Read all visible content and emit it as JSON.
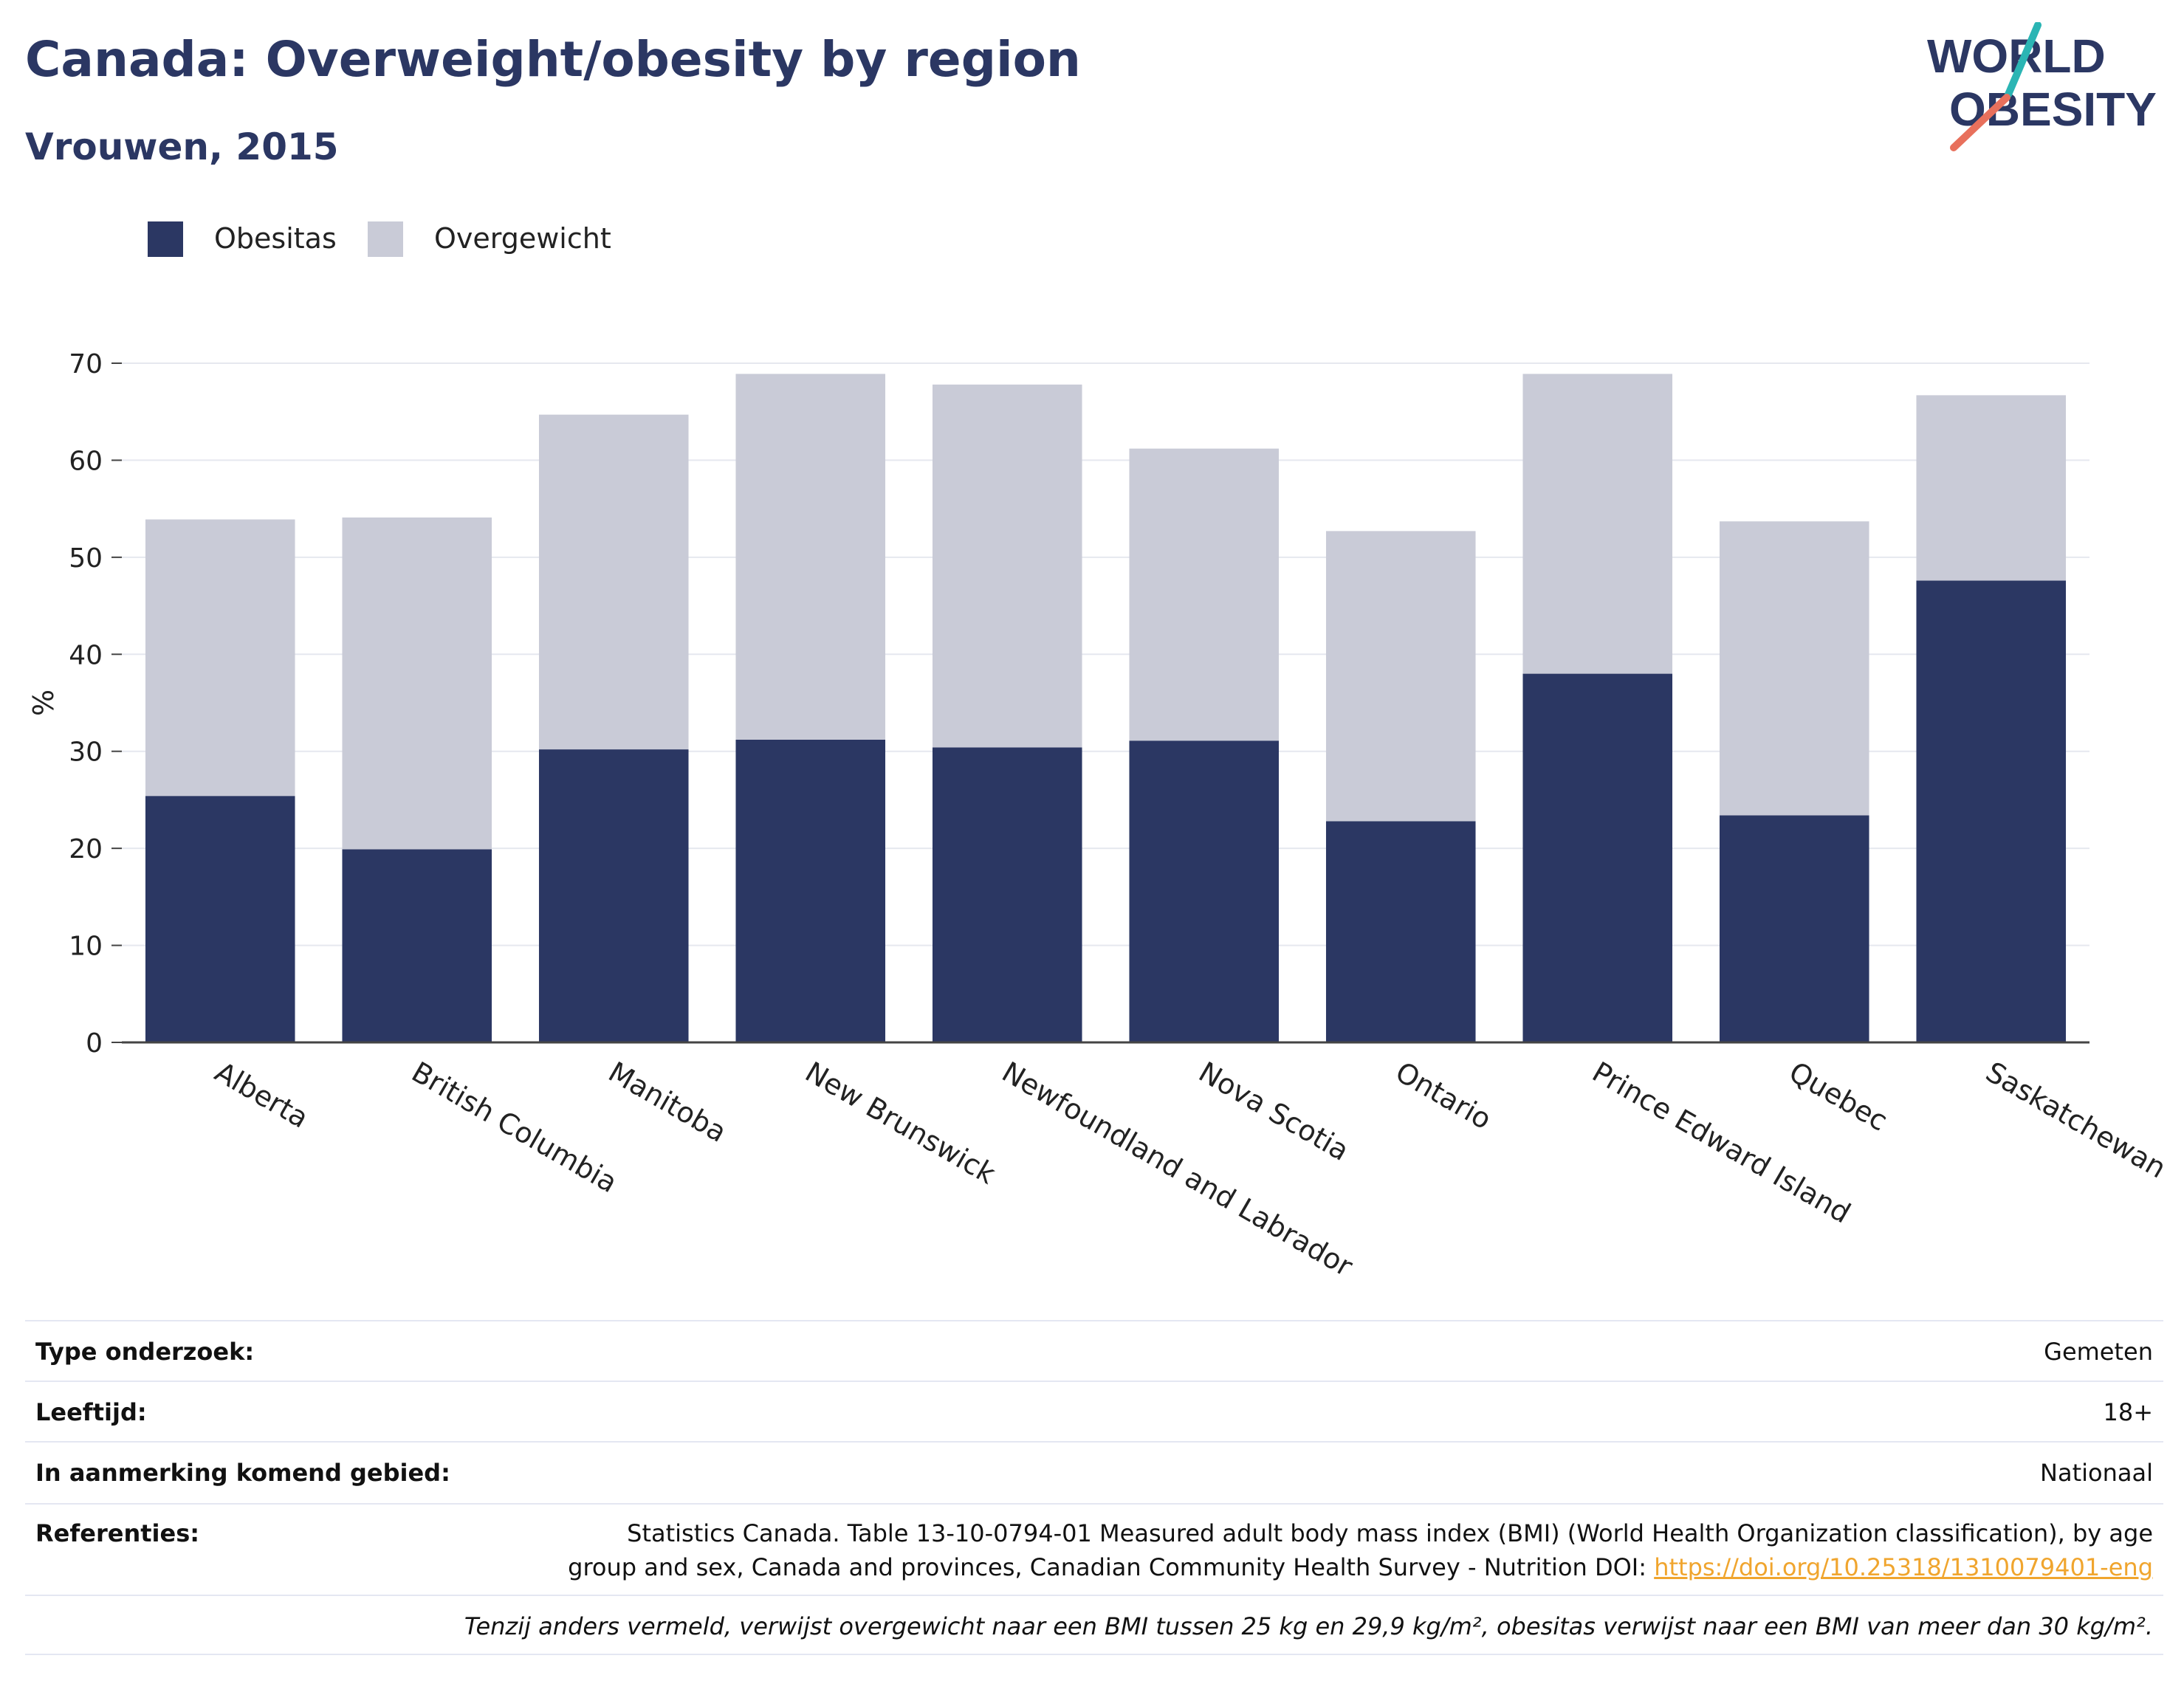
{
  "header": {
    "title": "Canada: Overweight/obesity by region",
    "subtitle": "Vrouwen, 2015"
  },
  "logo": {
    "line1": "WORLD",
    "line2": "OBESITY"
  },
  "colors": {
    "obesity": "#2b3763",
    "overweight": "#c9cbd7",
    "title": "#2b3763",
    "link": "#f0a52e"
  },
  "chart_data": {
    "type": "bar",
    "stacked": true,
    "categories": [
      "Alberta",
      "British Columbia",
      "Manitoba",
      "New Brunswick",
      "Newfoundland and Labrador",
      "Nova Scotia",
      "Ontario",
      "Prince Edward Island",
      "Quebec",
      "Saskatchewan"
    ],
    "series": [
      {
        "name": "Obesitas",
        "values": [
          25.4,
          19.9,
          30.2,
          31.2,
          30.4,
          31.1,
          22.8,
          38.0,
          23.4,
          47.6
        ]
      },
      {
        "name": "Overgewicht",
        "values": [
          28.5,
          34.2,
          34.5,
          37.7,
          37.4,
          30.1,
          29.9,
          30.9,
          30.3,
          19.1
        ]
      }
    ],
    "ylabel": "%",
    "xlabel": "",
    "ylim": [
      0,
      70
    ],
    "yticks": [
      0,
      10,
      20,
      30,
      40,
      50,
      60,
      70
    ],
    "grid": true,
    "legend": "top-left"
  },
  "info": {
    "rows": [
      {
        "key": "Type onderzoek:",
        "value": "Gemeten"
      },
      {
        "key": "Leeftijd:",
        "value": "18+"
      },
      {
        "key": "In aanmerking komend gebied:",
        "value": "Nationaal"
      }
    ],
    "references_key": "Referenties:",
    "references_line1": "Statistics Canada. Table 13-10-0794-01 Measured adult body mass index (BMI) (World Health Organization classification), by age",
    "references_line2": "group and sex, Canada and provinces, Canadian Community Health Survey - Nutrition DOI: ",
    "references_link": "https://doi.org/10.25318/1310079401-eng",
    "note": "Tenzij anders vermeld, verwijst overgewicht naar een BMI tussen 25 kg en 29,9 kg/m², obesitas verwijst naar een BMI van meer dan 30 kg/m²."
  }
}
